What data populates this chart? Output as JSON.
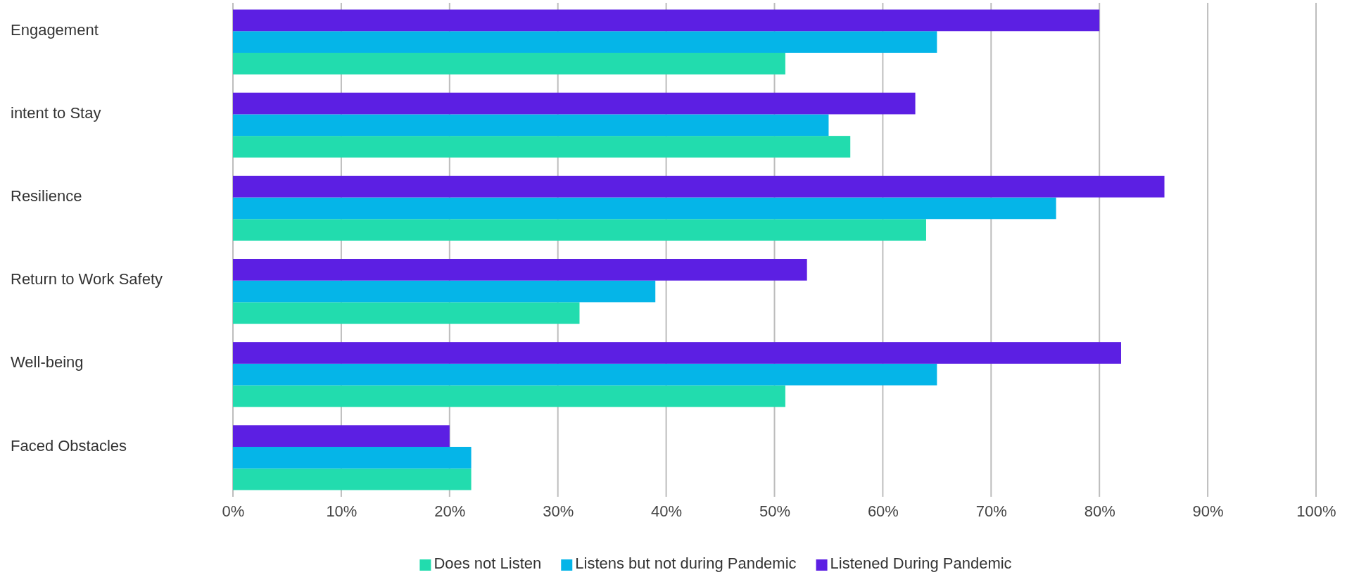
{
  "chart_data": {
    "type": "bar",
    "orientation": "horizontal",
    "categories": [
      "Engagement",
      "intent to Stay",
      "Resilience",
      "Return to Work Safety",
      "Well-being",
      "Faced Obstacles"
    ],
    "series": [
      {
        "name": "Does not Listen",
        "color": "#22dcae",
        "values": [
          51,
          57,
          64,
          32,
          51,
          22
        ]
      },
      {
        "name": "Listens but not during Pandemic",
        "color": "#05b5e8",
        "values": [
          65,
          55,
          76,
          39,
          65,
          22
        ]
      },
      {
        "name": "Listened During Pandemic",
        "color": "#5c1fe3",
        "values": [
          80,
          63,
          86,
          53,
          82,
          20
        ]
      }
    ],
    "xlim": [
      0,
      100
    ],
    "xticks": [
      {
        "value": 0,
        "label": "0%"
      },
      {
        "value": 10,
        "label": "10%"
      },
      {
        "value": 20,
        "label": "20%"
      },
      {
        "value": 30,
        "label": "30%"
      },
      {
        "value": 40,
        "label": "40%"
      },
      {
        "value": 50,
        "label": "50%"
      },
      {
        "value": 60,
        "label": "60%"
      },
      {
        "value": 70,
        "label": "70%"
      },
      {
        "value": 80,
        "label": "80%"
      },
      {
        "value": 90,
        "label": "90%"
      },
      {
        "value": 100,
        "label": "100%"
      }
    ],
    "grid": "x",
    "legend": "bottom"
  }
}
